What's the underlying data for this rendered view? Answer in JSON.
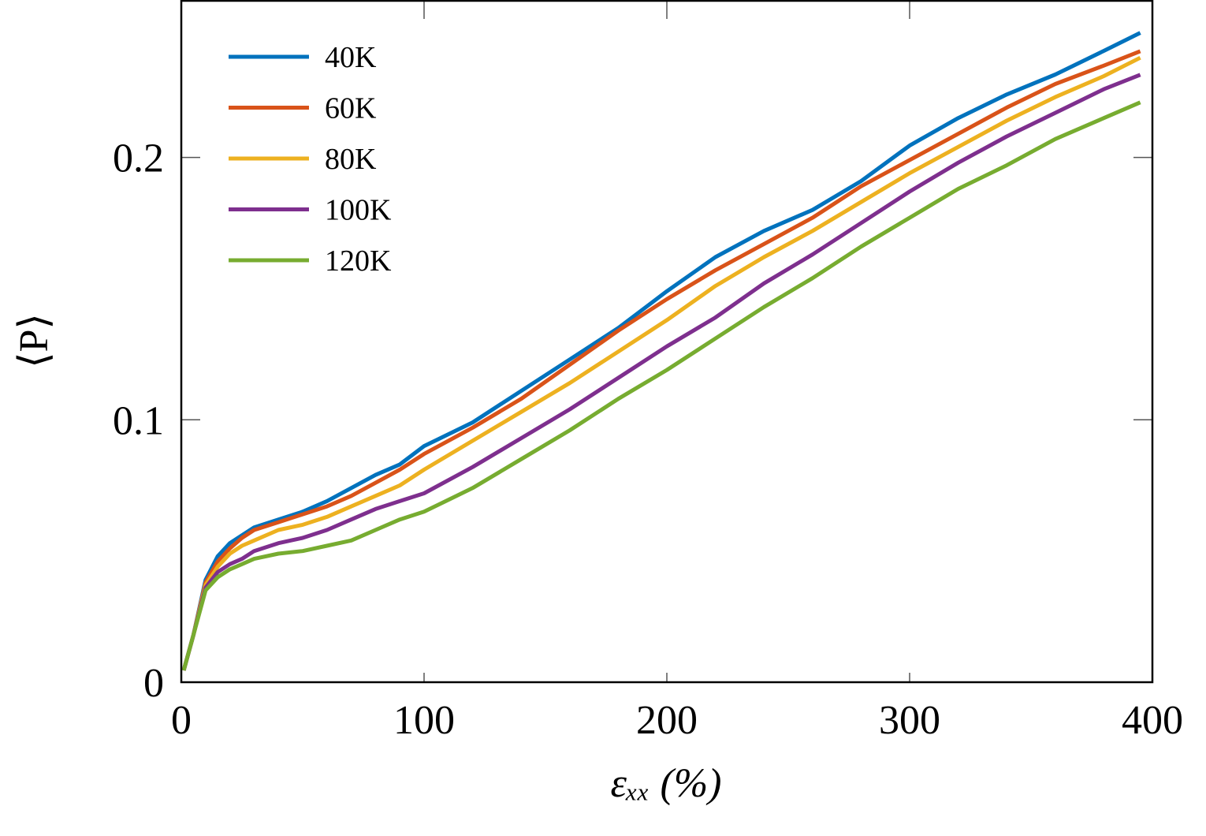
{
  "chart_data": {
    "type": "line",
    "xlabel": "εₓₓ (%)",
    "ylabel": "⟨P⟩",
    "x": [
      1,
      5,
      10,
      15,
      20,
      25,
      30,
      40,
      50,
      60,
      70,
      80,
      90,
      100,
      120,
      140,
      160,
      180,
      200,
      220,
      240,
      260,
      280,
      300,
      320,
      340,
      360,
      380,
      395
    ],
    "series": [
      {
        "name": "40K",
        "color": "#0072bd",
        "values": [
          0.0045,
          0.018,
          0.039,
          0.048,
          0.053,
          0.056,
          0.059,
          0.062,
          0.065,
          0.069,
          0.074,
          0.079,
          0.083,
          0.09,
          0.099,
          0.111,
          0.123,
          0.135,
          0.149,
          0.162,
          0.172,
          0.18,
          0.191,
          0.2045,
          0.215,
          0.224,
          0.2316,
          0.2406,
          0.2475
        ]
      },
      {
        "name": "60K",
        "color": "#d95319",
        "values": [
          0.0045,
          0.018,
          0.038,
          0.046,
          0.051,
          0.055,
          0.058,
          0.061,
          0.064,
          0.067,
          0.071,
          0.076,
          0.081,
          0.087,
          0.097,
          0.108,
          0.121,
          0.134,
          0.146,
          0.157,
          0.167,
          0.177,
          0.189,
          0.199,
          0.209,
          0.219,
          0.228,
          0.235,
          0.2405
        ]
      },
      {
        "name": "80K",
        "color": "#edb120",
        "values": [
          0.0045,
          0.018,
          0.037,
          0.044,
          0.049,
          0.052,
          0.054,
          0.058,
          0.06,
          0.063,
          0.067,
          0.071,
          0.075,
          0.081,
          0.092,
          0.103,
          0.114,
          0.126,
          0.138,
          0.151,
          0.162,
          0.172,
          0.183,
          0.194,
          0.204,
          0.214,
          0.223,
          0.231,
          0.238
        ]
      },
      {
        "name": "100K",
        "color": "#7e2f8e",
        "values": [
          0.0045,
          0.018,
          0.036,
          0.042,
          0.045,
          0.047,
          0.05,
          0.053,
          0.055,
          0.058,
          0.062,
          0.066,
          0.069,
          0.072,
          0.082,
          0.093,
          0.104,
          0.116,
          0.128,
          0.139,
          0.152,
          0.163,
          0.175,
          0.187,
          0.198,
          0.208,
          0.217,
          0.226,
          0.2315
        ]
      },
      {
        "name": "120K",
        "color": "#77ac30",
        "values": [
          0.0045,
          0.018,
          0.035,
          0.04,
          0.043,
          0.045,
          0.047,
          0.049,
          0.05,
          0.052,
          0.054,
          0.058,
          0.062,
          0.065,
          0.074,
          0.085,
          0.096,
          0.108,
          0.119,
          0.131,
          0.143,
          0.154,
          0.166,
          0.177,
          0.188,
          0.197,
          0.207,
          0.215,
          0.221
        ]
      }
    ],
    "xlim": [
      0,
      400
    ],
    "xticks": [
      0,
      100,
      200,
      300,
      400
    ],
    "ylim": [
      0,
      0.26
    ],
    "yticks": [
      0,
      0.1,
      0.2
    ],
    "legend": "upper-left"
  }
}
